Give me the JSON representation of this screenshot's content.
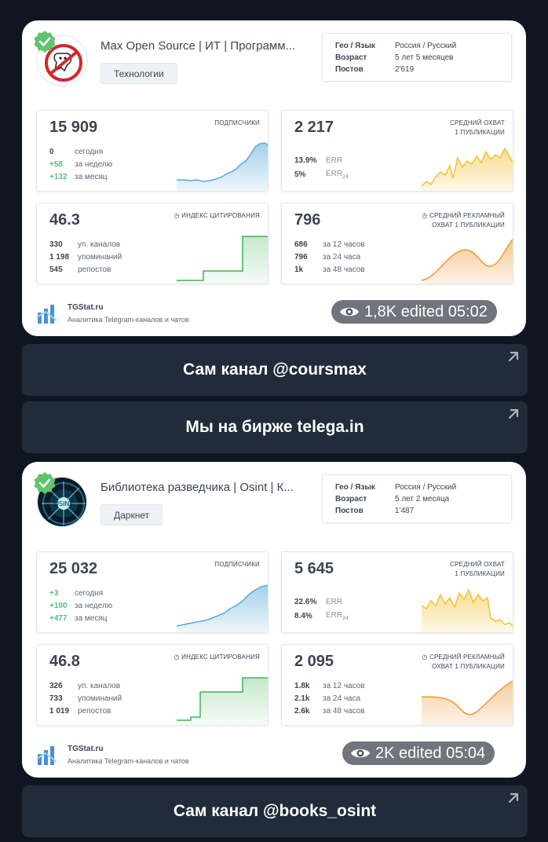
{
  "cards": [
    {
      "title": "Max Open Source | ИТ | Программ...",
      "tag": "Технологии",
      "info": [
        {
          "k": "Гео / Язык",
          "v": "Россия / Русский"
        },
        {
          "k": "Возраст",
          "v": "5 лет 5 месяцев"
        },
        {
          "k": "Постов",
          "v": "2'619"
        }
      ],
      "subscribers": {
        "value": "15 909",
        "label": "ПОДПИСЧИКИ",
        "rows": [
          {
            "v": "0",
            "t": "сегодня"
          },
          {
            "v": "+58",
            "t": "за неделю"
          },
          {
            "v": "+132",
            "t": "за месяц"
          }
        ]
      },
      "reach": {
        "value": "2 217",
        "label1": "СРЕДНИЙ ОХВАТ",
        "label2": "1 ПУБЛИКАЦИИ",
        "rows": [
          {
            "v": "13.9%",
            "t": "ERR"
          },
          {
            "v": "5%",
            "t": "ERR",
            "sub": "24"
          }
        ]
      },
      "citation": {
        "value": "46.3",
        "label": "ИНДЕКС ЦИТИРОВАНИЯ",
        "rows": [
          {
            "v": "330",
            "t": "уп. каналов"
          },
          {
            "v": "1 198",
            "t": "упоминаний"
          },
          {
            "v": "545",
            "t": "репостов"
          }
        ]
      },
      "ad_reach": {
        "value": "796",
        "label1": "СРЕДНИЙ РЕКЛАМНЫЙ",
        "label2": "ОХВАТ 1 ПУБЛИКАЦИИ",
        "rows": [
          {
            "v": "686",
            "t": "за 12 часов"
          },
          {
            "v": "796",
            "t": "за 24 часа"
          },
          {
            "v": "1k",
            "t": "за 48 часов"
          }
        ]
      },
      "footer": {
        "name": "TGStat.ru",
        "desc": "Аналитика Telegram-каналов и чатов"
      },
      "views": "1,8K",
      "edited": "edited 05:02"
    },
    {
      "title": "Библиотека разведчика | Osint | К...",
      "tag": "Даркнет",
      "info": [
        {
          "k": "Гео / Язык",
          "v": "Россия / Русский"
        },
        {
          "k": "Возраст",
          "v": "5 лет 2 месяца"
        },
        {
          "k": "Постов",
          "v": "1'487"
        }
      ],
      "subscribers": {
        "value": "25 032",
        "label": "ПОДПИСЧИКИ",
        "rows": [
          {
            "v": "+3",
            "t": "сегодня"
          },
          {
            "v": "+100",
            "t": "за неделю"
          },
          {
            "v": "+477",
            "t": "за месяц"
          }
        ]
      },
      "reach": {
        "value": "5 645",
        "label1": "СРЕДНИЙ ОХВАТ",
        "label2": "1 ПУБЛИКАЦИИ",
        "rows": [
          {
            "v": "22.6%",
            "t": "ERR"
          },
          {
            "v": "8.4%",
            "t": "ERR",
            "sub": "24"
          }
        ]
      },
      "citation": {
        "value": "46.8",
        "label": "ИНДЕКС ЦИТИРОВАНИЯ",
        "rows": [
          {
            "v": "326",
            "t": "уп. каналов"
          },
          {
            "v": "733",
            "t": "упоминаний"
          },
          {
            "v": "1 019",
            "t": "репостов"
          }
        ]
      },
      "ad_reach": {
        "value": "2 095",
        "label1": "СРЕДНИЙ РЕКЛАМНЫЙ",
        "label2": "ОХВАТ 1 ПУБЛИКАЦИИ",
        "rows": [
          {
            "v": "1.8k",
            "t": "за 12 часов"
          },
          {
            "v": "2.1k",
            "t": "за 24 часа"
          },
          {
            "v": "2.6k",
            "t": "за 48 часов"
          }
        ]
      },
      "footer": {
        "name": "TGStat.ru",
        "desc": "Аналитика Telegram-каналов и чатов"
      },
      "views": "2K",
      "edited": "edited 05:04"
    }
  ],
  "buttons": {
    "coursmax": "Сам канал @coursmax",
    "telega": "Мы на бирже telega.in",
    "books_osint": "Сам канал @books_osint"
  },
  "icons": [
    "verified-badge-icon",
    "eye-icon",
    "external-arrow-icon",
    "clock-icon",
    "tgstat-logo-icon"
  ],
  "colors": {
    "background": "#0f1621",
    "button": "#212b39",
    "green": "#4fbf7b",
    "blue_chart": "#5aa9d8",
    "yellow_chart": "#f2c232",
    "orange_chart": "#ee9a3b",
    "green_chart": "#3fb254"
  }
}
